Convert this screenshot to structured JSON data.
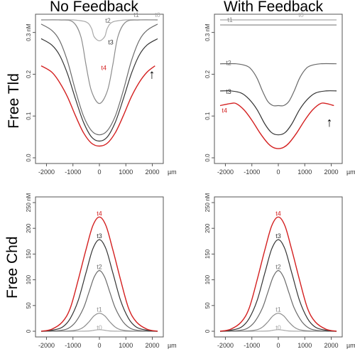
{
  "titles": {
    "col_left": "No Feedback",
    "col_right": "With Feedback",
    "row_top": "Free Tld",
    "row_bottom": "Free Chd"
  },
  "colors": {
    "t0": "#a9a9a9",
    "t1": "#8c8c8c",
    "t2": "#6a6a6a",
    "t3": "#333333",
    "t4": "#d42020",
    "axis": "#555555"
  },
  "chart_data": [
    {
      "id": "tld-no-feedback",
      "type": "line",
      "xlabel": "µm",
      "x_ticks": [
        -2000,
        -1000,
        0,
        1000,
        2000
      ],
      "x_tick_labels": [
        "-2000",
        "-1000",
        "0",
        "1000",
        "2000"
      ],
      "xlim": [
        -2200,
        2200
      ],
      "ylim": [
        0,
        0.33
      ],
      "y_ticks": [
        0.0,
        0.1,
        0.2,
        0.3
      ],
      "y_tick_labels": [
        "0.0",
        "0.1",
        "0.2",
        "0.3 nM"
      ],
      "annotations": [
        "↑"
      ],
      "series": [
        {
          "name": "t0",
          "x": [
            -2200,
            -1500,
            -1000,
            -500,
            -300,
            -200,
            0,
            200,
            300,
            500,
            1000,
            1500,
            2200
          ],
          "y": [
            0.33,
            0.33,
            0.33,
            0.325,
            0.31,
            0.29,
            0.28,
            0.29,
            0.31,
            0.325,
            0.33,
            0.33,
            0.33
          ]
        },
        {
          "name": "t1",
          "x": [
            -2200,
            -1500,
            -1000,
            -700,
            -500,
            -300,
            0,
            300,
            500,
            700,
            1000,
            1500,
            2200
          ],
          "y": [
            0.33,
            0.33,
            0.325,
            0.29,
            0.22,
            0.16,
            0.13,
            0.16,
            0.22,
            0.29,
            0.325,
            0.33,
            0.33
          ]
        },
        {
          "name": "t2",
          "x": [
            -2200,
            -1800,
            -1500,
            -1200,
            -900,
            -600,
            -300,
            0,
            300,
            600,
            900,
            1200,
            1500,
            1800,
            2200
          ],
          "y": [
            0.32,
            0.305,
            0.28,
            0.23,
            0.16,
            0.1,
            0.065,
            0.055,
            0.065,
            0.1,
            0.16,
            0.23,
            0.28,
            0.305,
            0.32
          ]
        },
        {
          "name": "t3",
          "x": [
            -2200,
            -1800,
            -1500,
            -1200,
            -900,
            -600,
            -300,
            0,
            300,
            600,
            900,
            1200,
            1500,
            1800,
            2200
          ],
          "y": [
            0.285,
            0.27,
            0.245,
            0.2,
            0.14,
            0.085,
            0.05,
            0.04,
            0.05,
            0.085,
            0.14,
            0.2,
            0.245,
            0.27,
            0.285
          ]
        },
        {
          "name": "t4",
          "x": [
            -2200,
            -1800,
            -1500,
            -1200,
            -900,
            -600,
            -300,
            0,
            300,
            600,
            900,
            1200,
            1500,
            1800,
            2100
          ],
          "y": [
            0.22,
            0.205,
            0.18,
            0.145,
            0.1,
            0.06,
            0.035,
            0.028,
            0.035,
            0.06,
            0.1,
            0.145,
            0.18,
            0.205,
            0.22
          ]
        }
      ]
    },
    {
      "id": "tld-with-feedback",
      "type": "line",
      "xlabel": "µm",
      "x_ticks": [
        -2000,
        -1000,
        0,
        1000,
        2000
      ],
      "x_tick_labels": [
        "-2000",
        "-1000",
        "0",
        "1000",
        "2000"
      ],
      "xlim": [
        -2200,
        2200
      ],
      "ylim": [
        0,
        0.33
      ],
      "y_ticks": [
        0.0,
        0.1,
        0.2,
        0.3
      ],
      "y_tick_labels": [
        "0.0",
        "0.1",
        "0.2",
        "0.3 nM"
      ],
      "annotations": [
        "↑"
      ],
      "series": [
        {
          "name": "t0",
          "x": [
            -2200,
            -1000,
            0,
            1000,
            2200
          ],
          "y": [
            0.33,
            0.33,
            0.33,
            0.33,
            0.33
          ]
        },
        {
          "name": "t1",
          "x": [
            -2200,
            -1000,
            0,
            1000,
            2200
          ],
          "y": [
            0.318,
            0.318,
            0.318,
            0.318,
            0.318
          ]
        },
        {
          "name": "t2",
          "x": [
            -2200,
            -1600,
            -1200,
            -1000,
            -800,
            -600,
            -400,
            -200,
            0,
            200,
            400,
            600,
            800,
            1000,
            1200,
            1600,
            2200
          ],
          "y": [
            0.225,
            0.225,
            0.22,
            0.21,
            0.19,
            0.16,
            0.135,
            0.125,
            0.125,
            0.125,
            0.135,
            0.16,
            0.19,
            0.21,
            0.22,
            0.225,
            0.225
          ]
        },
        {
          "name": "t3",
          "x": [
            -2200,
            -1800,
            -1400,
            -1100,
            -800,
            -500,
            -250,
            0,
            250,
            500,
            800,
            1100,
            1400,
            1800,
            2200
          ],
          "y": [
            0.16,
            0.16,
            0.155,
            0.14,
            0.115,
            0.08,
            0.06,
            0.055,
            0.06,
            0.08,
            0.115,
            0.14,
            0.155,
            0.16,
            0.16
          ]
        },
        {
          "name": "t4",
          "x": [
            -2200,
            -1800,
            -1600,
            -1300,
            -1000,
            -700,
            -400,
            -200,
            0,
            200,
            400,
            700,
            1000,
            1300,
            1600,
            1800,
            2100
          ],
          "y": [
            0.125,
            0.13,
            0.13,
            0.115,
            0.09,
            0.06,
            0.035,
            0.025,
            0.022,
            0.025,
            0.035,
            0.06,
            0.09,
            0.115,
            0.13,
            0.13,
            0.125
          ]
        }
      ]
    },
    {
      "id": "chd-no-feedback",
      "type": "line",
      "xlabel": "µm",
      "x_ticks": [
        -2000,
        -1000,
        0,
        1000,
        2000
      ],
      "x_tick_labels": [
        "-2000",
        "-1000",
        "0",
        "1000",
        "2000"
      ],
      "xlim": [
        -2200,
        2200
      ],
      "ylim": [
        0,
        250
      ],
      "y_ticks": [
        0,
        50,
        100,
        150,
        200,
        250
      ],
      "y_tick_labels": [
        "0",
        "50",
        "100",
        "150",
        "200",
        "250 nM"
      ],
      "series": [
        {
          "name": "t0",
          "x": [
            -2200,
            -1000,
            -400,
            -200,
            0,
            200,
            400,
            1000,
            2200
          ],
          "y": [
            0,
            0,
            0.5,
            2,
            3,
            2,
            0.5,
            0,
            0
          ]
        },
        {
          "name": "t1",
          "x": [
            -2200,
            -1200,
            -800,
            -600,
            -400,
            -200,
            0,
            200,
            400,
            600,
            800,
            1200,
            2200
          ],
          "y": [
            0,
            0.5,
            3,
            8,
            18,
            30,
            35,
            30,
            18,
            8,
            3,
            0.5,
            0
          ]
        },
        {
          "name": "t2",
          "x": [
            -2200,
            -1600,
            -1200,
            -900,
            -600,
            -400,
            -200,
            0,
            200,
            400,
            600,
            900,
            1200,
            1600,
            2200
          ],
          "y": [
            0,
            1,
            5,
            18,
            45,
            75,
            105,
            118,
            105,
            75,
            45,
            18,
            5,
            1,
            0
          ]
        },
        {
          "name": "t3",
          "x": [
            -2200,
            -1800,
            -1400,
            -1100,
            -800,
            -500,
            -250,
            0,
            250,
            500,
            800,
            1100,
            1400,
            1800,
            2200
          ],
          "y": [
            0,
            2,
            8,
            25,
            60,
            115,
            160,
            178,
            160,
            115,
            60,
            25,
            8,
            2,
            0
          ]
        },
        {
          "name": "t4",
          "x": [
            -2200,
            -1800,
            -1400,
            -1100,
            -800,
            -500,
            -250,
            0,
            250,
            500,
            800,
            1100,
            1400,
            1800,
            2200
          ],
          "y": [
            0,
            4,
            18,
            45,
            100,
            160,
            205,
            222,
            205,
            160,
            100,
            45,
            18,
            4,
            0
          ]
        }
      ]
    },
    {
      "id": "chd-with-feedback",
      "type": "line",
      "xlabel": "µm",
      "x_ticks": [
        -2000,
        -1000,
        0,
        1000,
        2000
      ],
      "x_tick_labels": [
        "-2000",
        "-1000",
        "0",
        "1000",
        "2000"
      ],
      "xlim": [
        -2200,
        2200
      ],
      "ylim": [
        0,
        250
      ],
      "y_ticks": [
        0,
        50,
        100,
        150,
        200,
        250
      ],
      "y_tick_labels": [
        "0",
        "50",
        "100",
        "150",
        "200",
        "250 nM"
      ],
      "series": [
        {
          "name": "t0",
          "x": [
            -2200,
            -1000,
            -400,
            -200,
            0,
            200,
            400,
            1000,
            2200
          ],
          "y": [
            0,
            0,
            0.5,
            2,
            3,
            2,
            0.5,
            0,
            0
          ]
        },
        {
          "name": "t1",
          "x": [
            -2200,
            -1200,
            -800,
            -600,
            -400,
            -200,
            0,
            200,
            400,
            600,
            800,
            1200,
            2200
          ],
          "y": [
            0,
            0.5,
            3,
            8,
            18,
            30,
            35,
            30,
            18,
            8,
            3,
            0.5,
            0
          ]
        },
        {
          "name": "t2",
          "x": [
            -2200,
            -1600,
            -1200,
            -900,
            -600,
            -400,
            -200,
            0,
            200,
            400,
            600,
            900,
            1200,
            1600,
            2200
          ],
          "y": [
            0,
            1,
            5,
            18,
            45,
            75,
            105,
            118,
            105,
            75,
            45,
            18,
            5,
            1,
            0
          ]
        },
        {
          "name": "t3",
          "x": [
            -2200,
            -1800,
            -1400,
            -1100,
            -800,
            -500,
            -250,
            0,
            250,
            500,
            800,
            1100,
            1400,
            1800,
            2200
          ],
          "y": [
            0,
            2,
            8,
            25,
            60,
            115,
            160,
            178,
            160,
            115,
            60,
            25,
            8,
            2,
            0
          ]
        },
        {
          "name": "t4",
          "x": [
            -2200,
            -1800,
            -1400,
            -1100,
            -800,
            -500,
            -250,
            0,
            250,
            500,
            800,
            1100,
            1400,
            1800,
            2200
          ],
          "y": [
            0,
            4,
            18,
            45,
            100,
            160,
            205,
            222,
            205,
            160,
            100,
            45,
            18,
            4,
            0
          ]
        }
      ]
    }
  ]
}
